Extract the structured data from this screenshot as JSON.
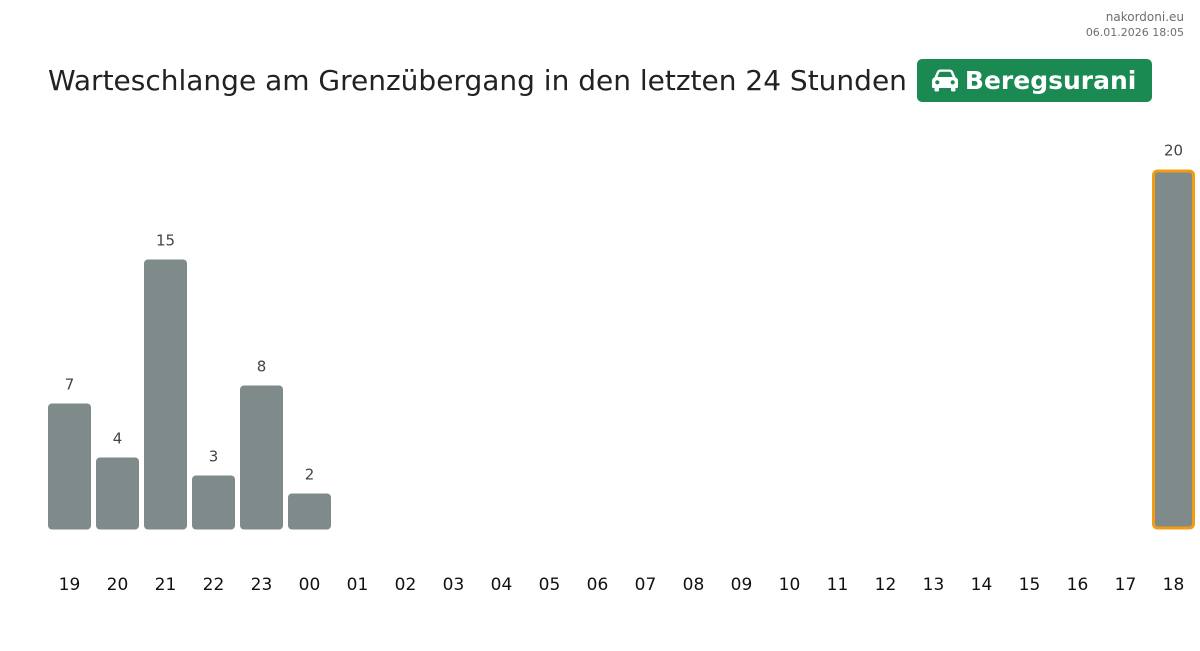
{
  "header": {
    "site": "nakordoni.eu",
    "timestamp": "06.01.2026 18:05",
    "title": "Warteschlange am Grenzübergang in den letzten 24 Stunden",
    "badge_label": "Beregsurani",
    "badge_icon": "car-icon"
  },
  "colors": {
    "badge_bg": "#1b8a52",
    "bar_fill": "#7f8a8a",
    "highlight_stroke": "#f39c12",
    "value_text": "#444444",
    "tick_text": "#111111"
  },
  "chart_data": {
    "type": "bar",
    "title": "Warteschlange am Grenzübergang in den letzten 24 Stunden",
    "xlabel": "",
    "ylabel": "",
    "ylim": [
      0,
      20
    ],
    "grid": false,
    "categories": [
      "19",
      "20",
      "21",
      "22",
      "23",
      "00",
      "01",
      "02",
      "03",
      "04",
      "05",
      "06",
      "07",
      "08",
      "09",
      "10",
      "11",
      "12",
      "13",
      "14",
      "15",
      "16",
      "17",
      "18"
    ],
    "values": [
      7,
      4,
      15,
      3,
      8,
      2,
      null,
      null,
      null,
      null,
      null,
      null,
      null,
      null,
      null,
      null,
      null,
      null,
      null,
      null,
      null,
      null,
      null,
      20
    ],
    "highlighted_category": "18"
  }
}
